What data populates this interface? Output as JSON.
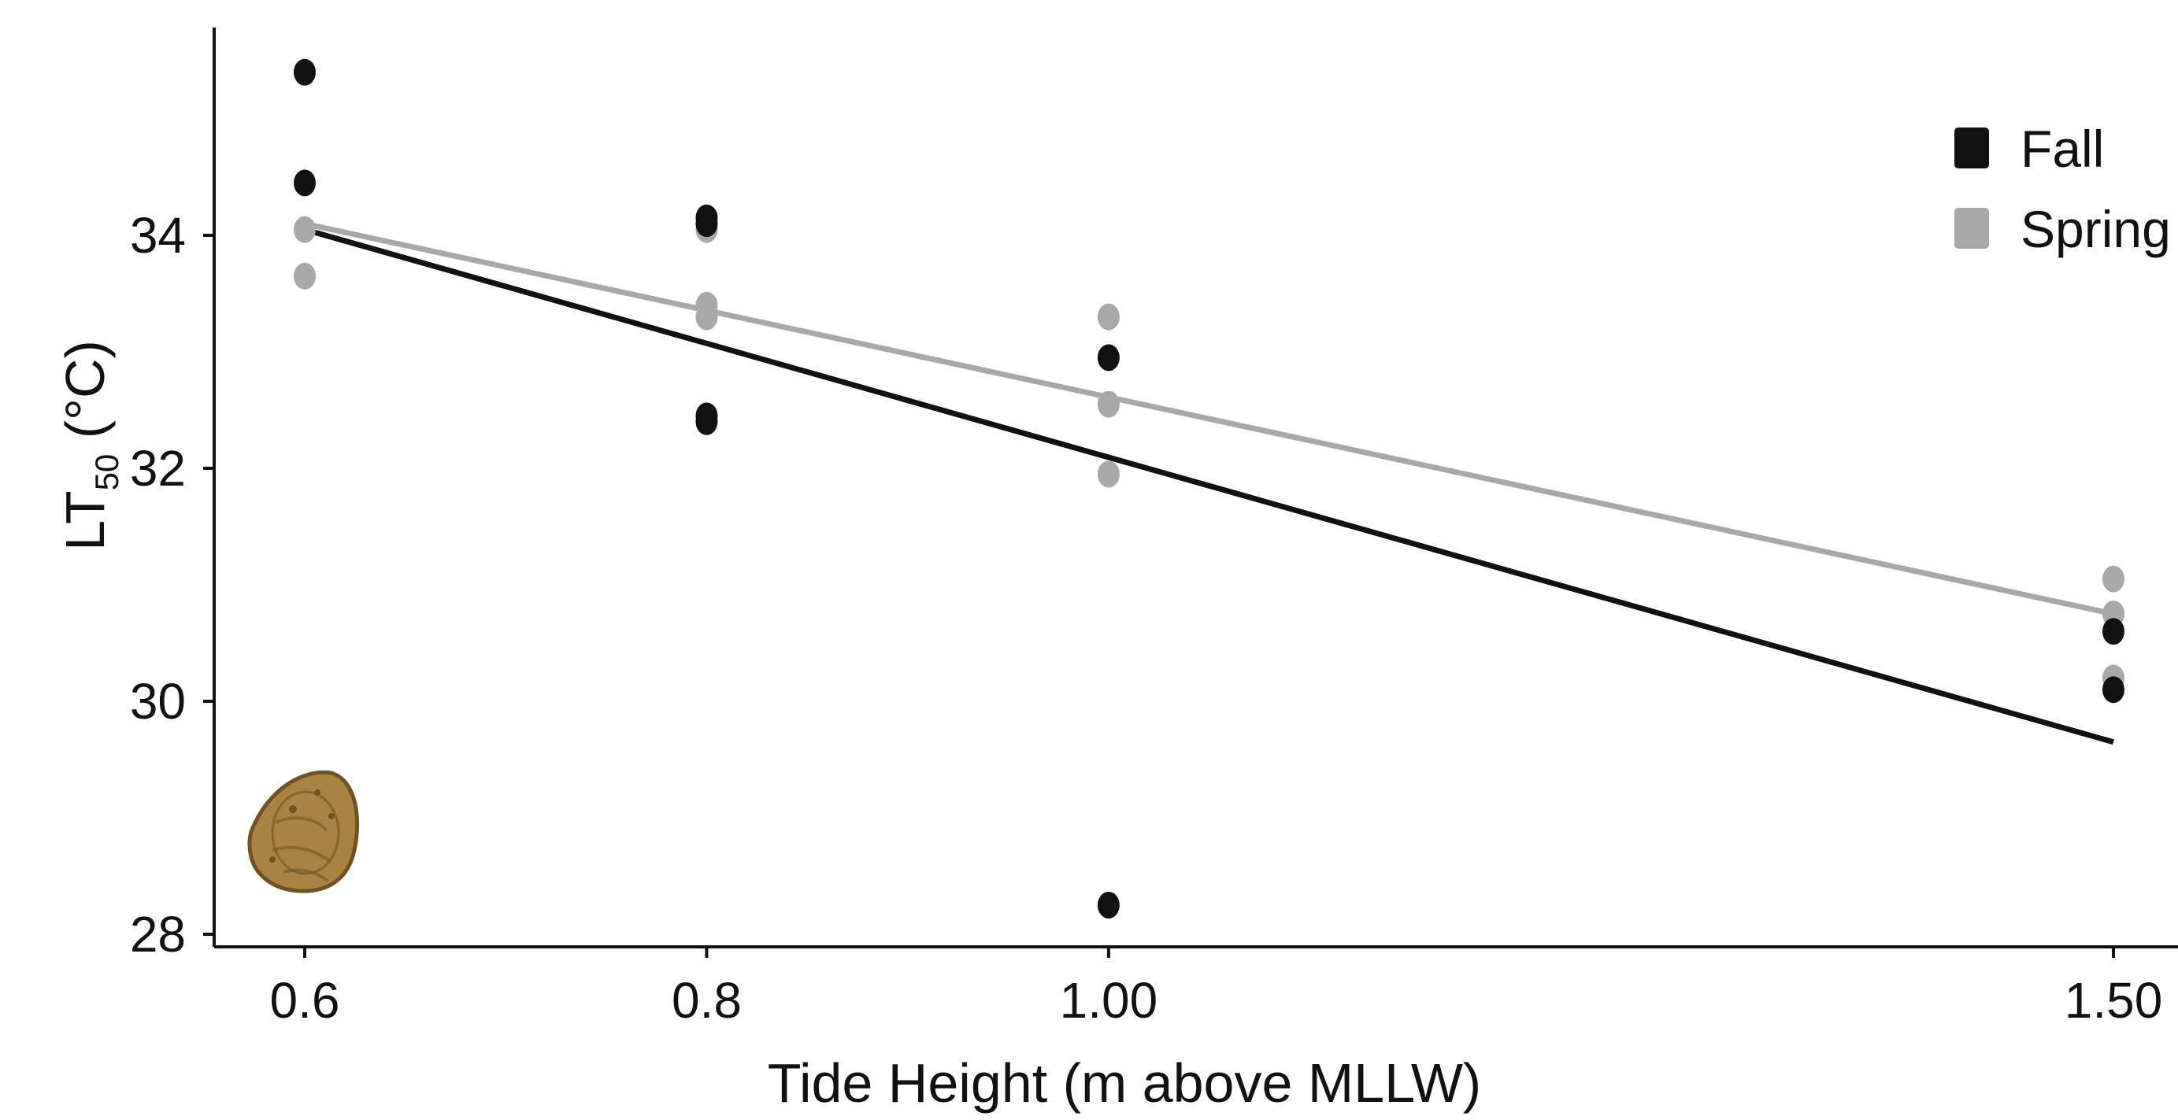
{
  "chart_data": {
    "type": "scatter",
    "xlabel": "Tide Height (m above MLLW)",
    "ylabel": {
      "main": "LT",
      "subscript": "50",
      "unit": " (°C)"
    },
    "x_categories": [
      "0.6",
      "0.8",
      "1.00",
      "1.50"
    ],
    "x": [
      0.6,
      0.8,
      1.0,
      1.5
    ],
    "ylim": [
      27.9,
      35.9
    ],
    "y_ticks": [
      28,
      30,
      32,
      34
    ],
    "grid": false,
    "legend_position": "top-right",
    "series": [
      {
        "name": "Fall",
        "color": "#111111",
        "points": [
          {
            "x": 0.6,
            "y": 35.4
          },
          {
            "x": 0.6,
            "y": 34.45
          },
          {
            "x": 0.8,
            "y": 34.15
          },
          {
            "x": 0.8,
            "y": 34.1
          },
          {
            "x": 0.8,
            "y": 32.45
          },
          {
            "x": 0.8,
            "y": 32.4
          },
          {
            "x": 1.0,
            "y": 32.95
          },
          {
            "x": 1.0,
            "y": 28.25
          },
          {
            "x": 1.5,
            "y": 30.6
          },
          {
            "x": 1.5,
            "y": 30.1
          }
        ],
        "fit": [
          {
            "x": 0.6,
            "y": 34.05
          },
          {
            "x": 1.5,
            "y": 29.65
          }
        ]
      },
      {
        "name": "Spring",
        "color": "#a8a8a8",
        "points": [
          {
            "x": 0.6,
            "y": 34.05
          },
          {
            "x": 0.6,
            "y": 33.65
          },
          {
            "x": 0.8,
            "y": 34.05
          },
          {
            "x": 0.8,
            "y": 33.4
          },
          {
            "x": 0.8,
            "y": 33.3
          },
          {
            "x": 1.0,
            "y": 33.3
          },
          {
            "x": 1.0,
            "y": 32.55
          },
          {
            "x": 1.0,
            "y": 31.95
          },
          {
            "x": 1.5,
            "y": 31.05
          },
          {
            "x": 1.5,
            "y": 30.75
          },
          {
            "x": 1.5,
            "y": 30.2
          }
        ],
        "fit": [
          {
            "x": 0.6,
            "y": 34.1
          },
          {
            "x": 1.5,
            "y": 30.75
          }
        ]
      }
    ],
    "inset_icon": "limpet-shell-icon"
  }
}
